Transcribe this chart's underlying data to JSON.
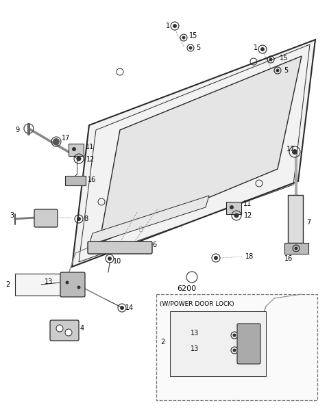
{
  "bg_color": "#ffffff",
  "line_color": "#2a2a2a",
  "fig_width": 4.8,
  "fig_height": 6.11,
  "dpi": 100
}
